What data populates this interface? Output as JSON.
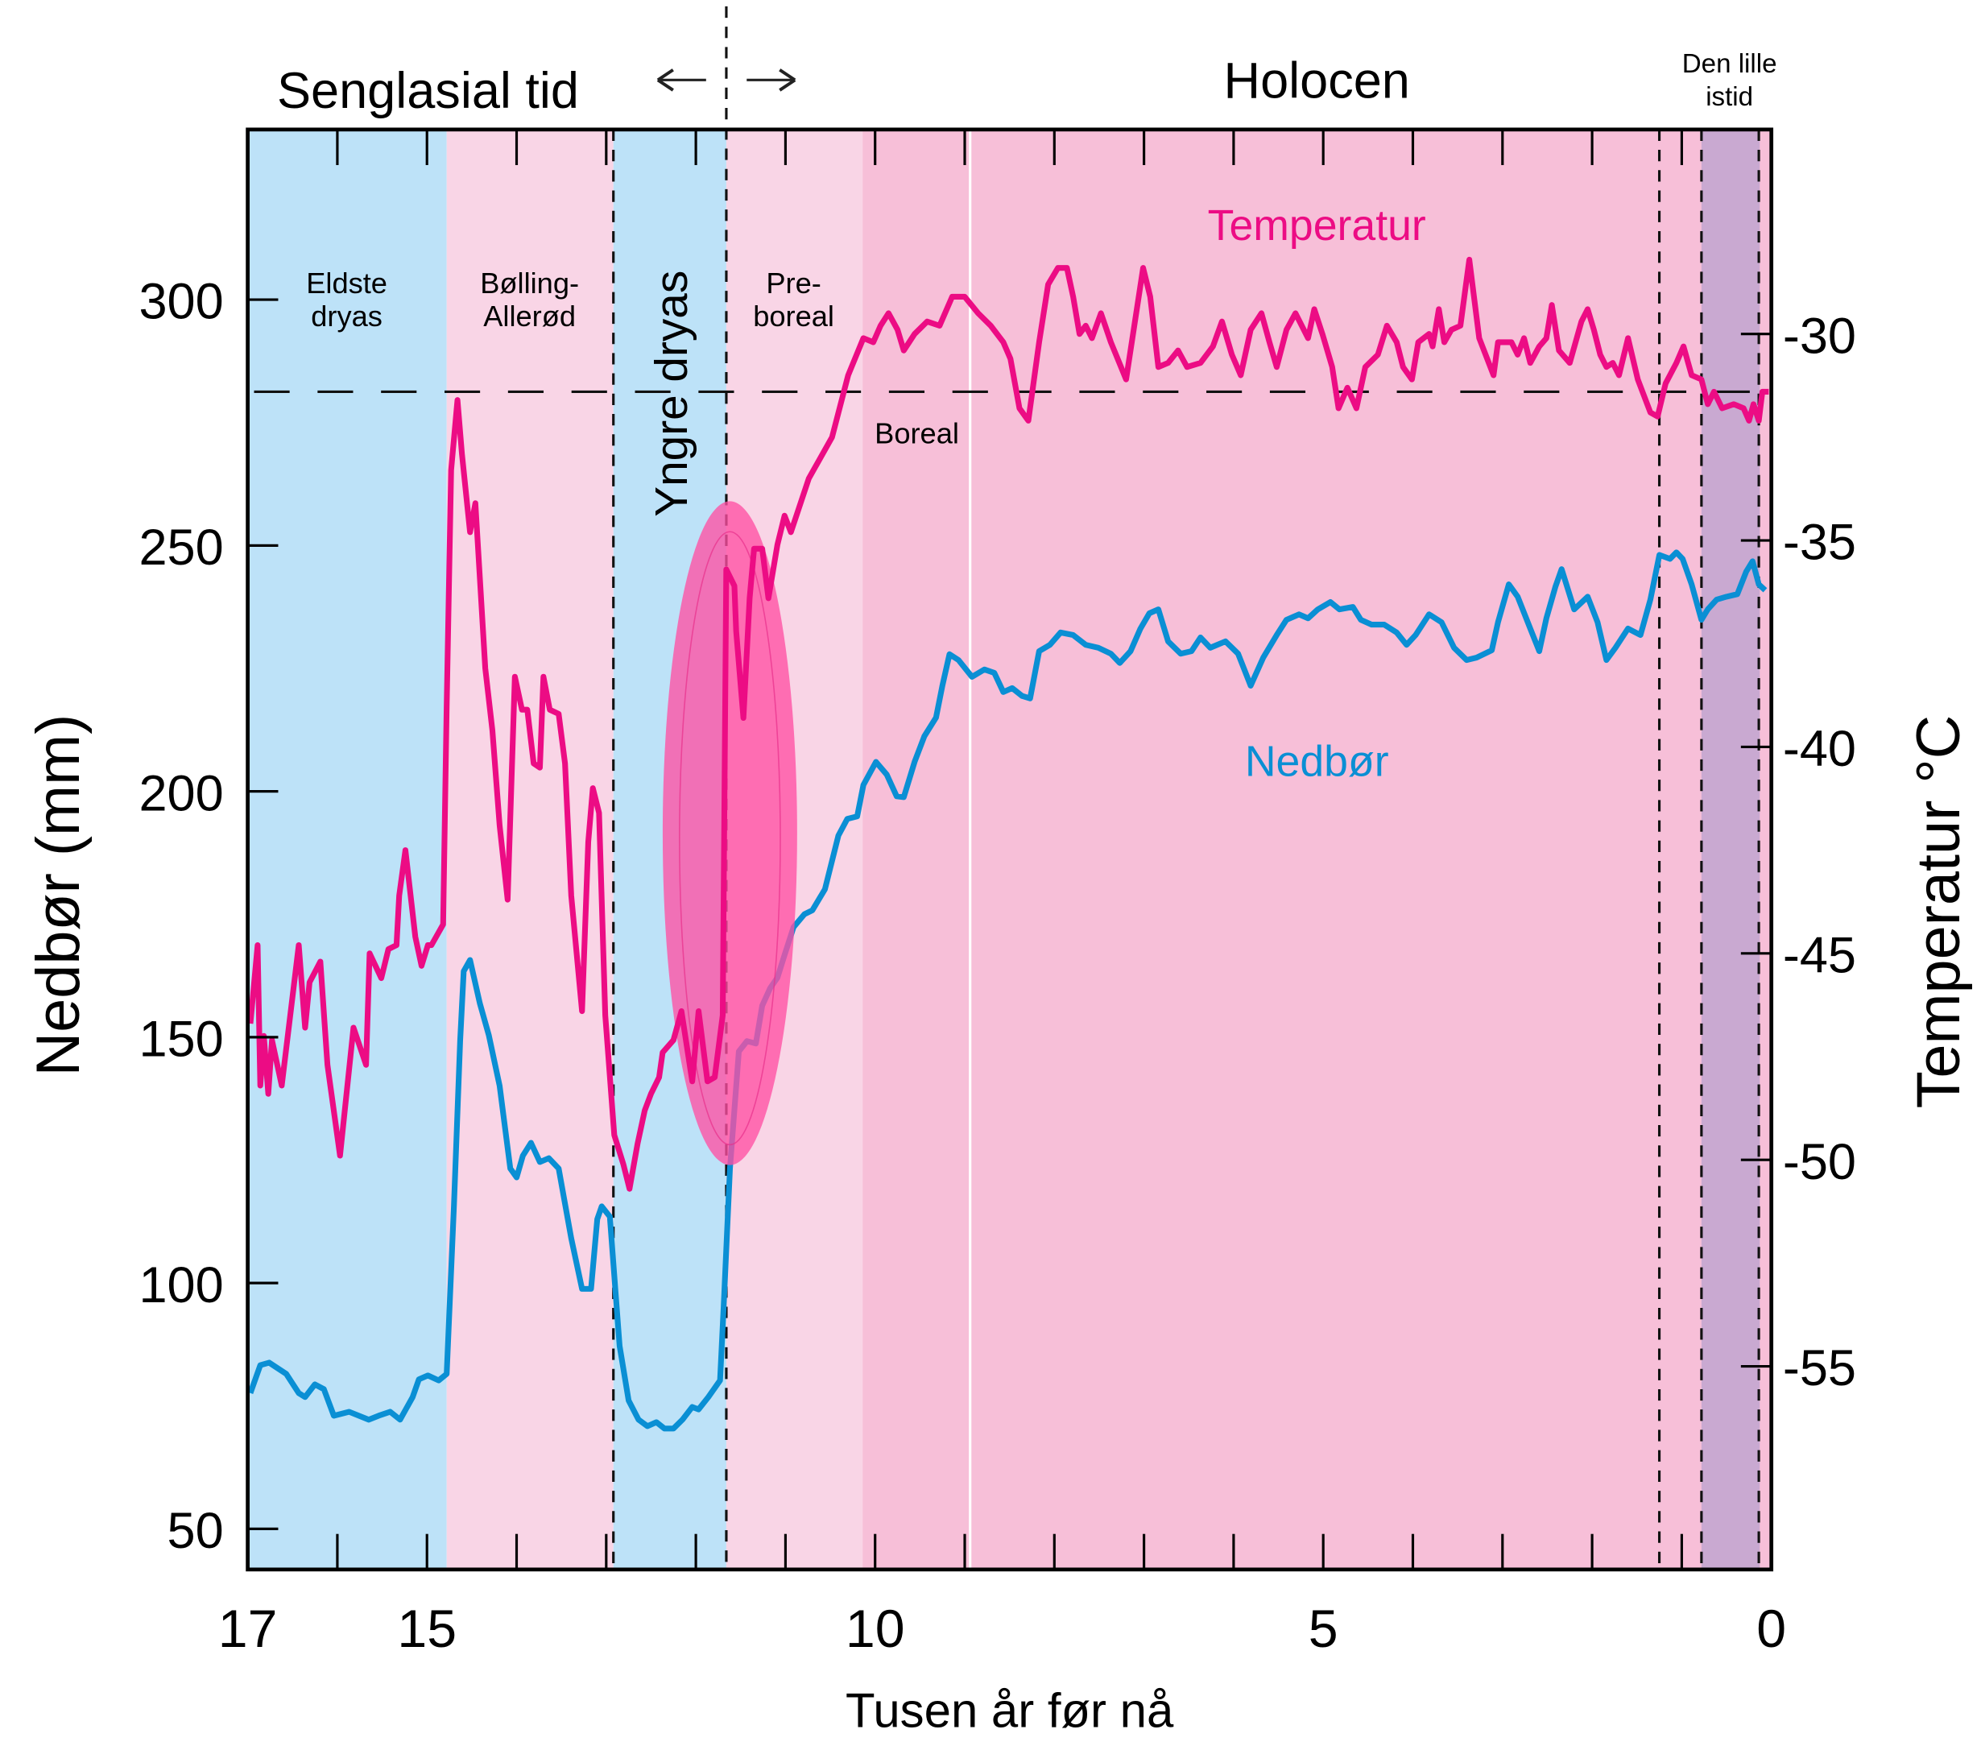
{
  "chart_data": {
    "type": "line",
    "title": "",
    "xlabel": "Tusen år før nå",
    "ylabel": "Nedbør (mm)",
    "y2label": "Temperatur °C",
    "xlim": [
      17,
      0
    ],
    "ylim": [
      41,
      334
    ],
    "y2lim": [
      -30,
      -58.9
    ],
    "x_ticks": [
      17,
      15,
      10,
      5,
      0
    ],
    "y_ticks": [
      50,
      100,
      150,
      200,
      250,
      300
    ],
    "y2_ticks": [
      -30,
      -35,
      -40,
      -45,
      -50,
      -55
    ],
    "y2_tick_labels": [
      "-30",
      "-35",
      "-40",
      "-45",
      "-50",
      "-55"
    ],
    "reference_line_temperature": -31.4,
    "periods_top": {
      "left": "Senglasial tid",
      "right": "Holocen",
      "lia_line1": "Den lille",
      "lia_line2": "istid",
      "boundary_age": 11.66
    },
    "zones": [
      {
        "name_line1": "Eldste",
        "name_line2": "dryas",
        "from": 17,
        "to": 14.78,
        "color": "#bde2f8"
      },
      {
        "name_line1": "Bølling-",
        "name_line2": "Allerød",
        "from": 14.78,
        "to": 12.92,
        "color": "#f9d5e6"
      },
      {
        "name_line1": "Yngre dryas",
        "name_line2": "",
        "from": 12.92,
        "to": 11.66,
        "color": "#bde2f8"
      },
      {
        "name_line1": "Pre-",
        "name_line2": "boreal",
        "from": 11.66,
        "to": 10.14,
        "color": "#f9d5e6"
      },
      {
        "name_line1": "Boreal",
        "name_line2": "",
        "from": 10.14,
        "to": 0,
        "color": "#f7bfd8"
      },
      {
        "name_line1": "",
        "name_line2": "",
        "from": 0.78,
        "to": 0.13,
        "color": "#c9a9d1"
      }
    ],
    "dashed_boundaries": [
      12.92,
      11.66,
      1.25,
      0.78,
      0.14
    ],
    "white_boundary": 8.94,
    "highlight_ellipse": {
      "age_center": 11.62,
      "age_halfwidth": 0.75,
      "precip_range": [
        124,
        259
      ],
      "color": "#ff4fa3"
    },
    "series": [
      {
        "name": "Temperatur",
        "axis": "right",
        "color": "#ec0c84",
        "x": [
          16.97,
          16.89,
          16.86,
          16.82,
          16.77,
          16.73,
          16.62,
          16.43,
          16.36,
          16.31,
          16.19,
          16.11,
          15.97,
          15.82,
          15.68,
          15.64,
          15.51,
          15.43,
          15.34,
          15.31,
          15.24,
          15.13,
          15.06,
          14.99,
          14.95,
          14.82,
          14.78,
          14.73,
          14.66,
          14.61,
          14.52,
          14.46,
          14.35,
          14.27,
          14.19,
          14.1,
          14.02,
          13.94,
          13.88,
          13.81,
          13.74,
          13.7,
          13.63,
          13.53,
          13.46,
          13.39,
          13.27,
          13.2,
          13.15,
          13.08,
          13.01,
          12.91,
          12.81,
          12.74,
          12.65,
          12.57,
          12.5,
          12.41,
          12.37,
          12.25,
          12.16,
          12.04,
          11.97,
          11.87,
          11.79,
          11.7,
          11.66,
          11.57,
          11.55,
          11.47,
          11.4,
          11.35,
          11.26,
          11.19,
          11.09,
          11.01,
          10.94,
          10.74,
          10.48,
          10.3,
          10.13,
          10.02,
          9.94,
          9.85,
          9.75,
          9.68,
          9.56,
          9.42,
          9.28,
          9.14,
          9.0,
          8.85,
          8.71,
          8.57,
          8.49,
          8.39,
          8.29,
          8.17,
          8.07,
          7.96,
          7.86,
          7.79,
          7.72,
          7.65,
          7.58,
          7.48,
          7.37,
          7.2,
          7.01,
          6.93,
          6.84,
          6.73,
          6.62,
          6.52,
          6.37,
          6.23,
          6.13,
          6.02,
          5.92,
          5.81,
          5.69,
          5.6,
          5.52,
          5.41,
          5.31,
          5.17,
          5.1,
          5.01,
          4.9,
          4.83,
          4.73,
          4.63,
          4.53,
          4.39,
          4.29,
          4.18,
          4.11,
          4.01,
          3.94,
          3.82,
          3.78,
          3.71,
          3.65,
          3.57,
          3.47,
          3.37,
          3.26,
          3.1,
          3.05,
          2.9,
          2.83,
          2.76,
          2.69,
          2.59,
          2.51,
          2.45,
          2.37,
          2.25,
          2.12,
          2.05,
          1.98,
          1.91,
          1.84,
          1.77,
          1.7,
          1.6,
          1.49,
          1.35,
          1.27,
          1.18,
          1.06,
          0.98,
          0.89,
          0.78,
          0.71,
          0.64,
          0.55,
          0.42,
          0.31,
          0.25,
          0.2,
          0.14,
          0.1,
          0.03
        ],
        "y": [
          -46.7,
          -44.8,
          -48.2,
          -47.0,
          -48.4,
          -47.1,
          -48.2,
          -44.8,
          -46.8,
          -45.7,
          -45.2,
          -47.7,
          -49.9,
          -46.8,
          -47.7,
          -45.0,
          -45.6,
          -44.9,
          -44.8,
          -43.6,
          -42.5,
          -44.6,
          -45.3,
          -44.8,
          -44.8,
          -44.3,
          -39.0,
          -33.3,
          -31.6,
          -32.9,
          -34.8,
          -34.1,
          -38.1,
          -39.6,
          -41.9,
          -43.7,
          -38.3,
          -39.1,
          -39.1,
          -40.4,
          -40.5,
          -38.3,
          -39.1,
          -39.2,
          -40.4,
          -43.6,
          -46.4,
          -42.3,
          -41.0,
          -41.6,
          -46.5,
          -49.4,
          -50.1,
          -50.7,
          -49.6,
          -48.8,
          -48.4,
          -48.0,
          -47.4,
          -47.1,
          -46.4,
          -48.1,
          -46.4,
          -48.1,
          -48.0,
          -46.5,
          -35.7,
          -36.1,
          -37.2,
          -39.3,
          -36.4,
          -35.2,
          -35.2,
          -36.4,
          -35.1,
          -34.4,
          -34.8,
          -33.5,
          -32.5,
          -31.0,
          -30.1,
          -30.2,
          -29.8,
          -29.5,
          -29.9,
          -30.4,
          -30.0,
          -29.7,
          -29.8,
          -29.1,
          -29.1,
          -29.5,
          -29.8,
          -30.2,
          -30.6,
          -31.8,
          -32.1,
          -30.2,
          -28.8,
          -28.4,
          -28.4,
          -29.1,
          -30.0,
          -29.8,
          -30.1,
          -29.5,
          -30.2,
          -31.1,
          -28.4,
          -29.1,
          -30.8,
          -30.7,
          -30.4,
          -30.8,
          -30.7,
          -30.3,
          -29.7,
          -30.5,
          -31.0,
          -29.9,
          -29.5,
          -30.2,
          -30.8,
          -29.9,
          -29.5,
          -30.1,
          -29.4,
          -30.0,
          -30.8,
          -31.8,
          -31.3,
          -31.8,
          -30.8,
          -30.5,
          -29.8,
          -30.2,
          -30.8,
          -31.1,
          -30.2,
          -30.0,
          -30.3,
          -29.4,
          -30.2,
          -29.9,
          -29.8,
          -28.2,
          -30.1,
          -31.0,
          -30.2,
          -30.2,
          -30.5,
          -30.1,
          -30.7,
          -30.3,
          -30.1,
          -29.3,
          -30.4,
          -30.7,
          -29.7,
          -29.4,
          -29.9,
          -30.5,
          -30.8,
          -30.7,
          -31.0,
          -30.1,
          -31.1,
          -31.9,
          -32.0,
          -31.2,
          -30.7,
          -30.3,
          -31.0,
          -31.1,
          -31.7,
          -31.4,
          -31.8,
          -31.7,
          -31.8,
          -32.1,
          -31.7,
          -32.1,
          -31.4,
          -31.4
        ]
      },
      {
        "name": "Nedbør",
        "axis": "left",
        "color": "#0a8fd4",
        "x": [
          16.97,
          16.86,
          16.76,
          16.57,
          16.43,
          16.36,
          16.25,
          16.15,
          16.04,
          15.87,
          15.65,
          15.54,
          15.41,
          15.3,
          15.16,
          15.09,
          14.99,
          14.87,
          14.78,
          14.7,
          14.63,
          14.59,
          14.52,
          14.41,
          14.31,
          14.19,
          14.12,
          14.07,
          14.0,
          13.93,
          13.84,
          13.74,
          13.64,
          13.53,
          13.39,
          13.27,
          13.17,
          13.1,
          13.05,
          12.96,
          12.85,
          12.75,
          12.64,
          12.54,
          12.44,
          12.35,
          12.25,
          12.15,
          12.04,
          11.97,
          11.86,
          11.73,
          11.69,
          11.62,
          11.52,
          11.43,
          11.33,
          11.26,
          11.17,
          11.09,
          11.01,
          10.91,
          10.79,
          10.7,
          10.56,
          10.41,
          10.31,
          10.2,
          10.13,
          9.99,
          9.87,
          9.76,
          9.68,
          9.56,
          9.45,
          9.32,
          9.25,
          9.17,
          9.07,
          8.92,
          8.78,
          8.67,
          8.57,
          8.47,
          8.36,
          8.27,
          8.17,
          8.05,
          7.93,
          7.79,
          7.65,
          7.51,
          7.37,
          7.27,
          7.15,
          7.04,
          6.94,
          6.84,
          6.73,
          6.59,
          6.47,
          6.37,
          6.26,
          6.09,
          5.95,
          5.81,
          5.67,
          5.52,
          5.41,
          5.27,
          5.17,
          5.06,
          4.92,
          4.82,
          4.67,
          4.58,
          4.46,
          4.32,
          4.18,
          4.07,
          3.97,
          3.82,
          3.68,
          3.54,
          3.4,
          3.29,
          3.12,
          3.05,
          2.93,
          2.83,
          2.69,
          2.59,
          2.51,
          2.41,
          2.34,
          2.2,
          2.05,
          1.94,
          1.84,
          1.74,
          1.6,
          1.46,
          1.35,
          1.25,
          1.13,
          1.06,
          0.99,
          0.89,
          0.78,
          0.71,
          0.61,
          0.5,
          0.38,
          0.28,
          0.21,
          0.14,
          0.07
        ],
        "y": [
          77.6,
          83.3,
          83.8,
          81.5,
          77.6,
          76.8,
          79.4,
          78.4,
          73.0,
          73.8,
          72.2,
          73.0,
          73.8,
          72.2,
          76.8,
          80.4,
          81.2,
          80.2,
          81.5,
          115.6,
          149.2,
          163.4,
          165.7,
          156.9,
          150.4,
          140.1,
          130.3,
          123.3,
          121.5,
          125.9,
          128.5,
          124.6,
          125.4,
          123.3,
          109.1,
          98.8,
          98.8,
          113.0,
          115.6,
          113.5,
          87.2,
          76.1,
          72.2,
          70.9,
          71.7,
          70.4,
          70.4,
          72.2,
          74.8,
          74.3,
          76.8,
          80.2,
          94.9,
          123.3,
          147.1,
          149.2,
          148.7,
          156.4,
          160.0,
          162.1,
          166.7,
          172.4,
          175.0,
          175.8,
          180.1,
          191.0,
          194.4,
          194.9,
          201.3,
          206.0,
          203.4,
          199.0,
          198.8,
          206.0,
          211.2,
          215.0,
          221.5,
          227.9,
          226.7,
          223.3,
          224.8,
          224.1,
          220.2,
          221.0,
          219.4,
          218.9,
          228.5,
          229.8,
          232.3,
          231.8,
          229.8,
          229.2,
          228.0,
          226.1,
          228.5,
          233.1,
          236.2,
          237.0,
          230.5,
          228.0,
          228.5,
          231.3,
          229.2,
          230.5,
          228.0,
          221.5,
          227.2,
          231.8,
          234.9,
          236.0,
          235.2,
          237.0,
          238.5,
          237.0,
          237.5,
          234.9,
          233.9,
          233.9,
          232.3,
          229.8,
          231.8,
          236.0,
          234.4,
          229.2,
          226.7,
          227.2,
          228.7,
          234.4,
          242.1,
          239.6,
          233.1,
          228.5,
          235.2,
          241.6,
          245.2,
          237.0,
          239.6,
          234.4,
          226.7,
          229.2,
          233.1,
          231.8,
          239.0,
          248.1,
          247.3,
          248.6,
          247.3,
          242.1,
          234.9,
          237.0,
          239.0,
          239.6,
          240.1,
          244.7,
          246.8,
          242.1,
          240.9
        ]
      }
    ]
  }
}
